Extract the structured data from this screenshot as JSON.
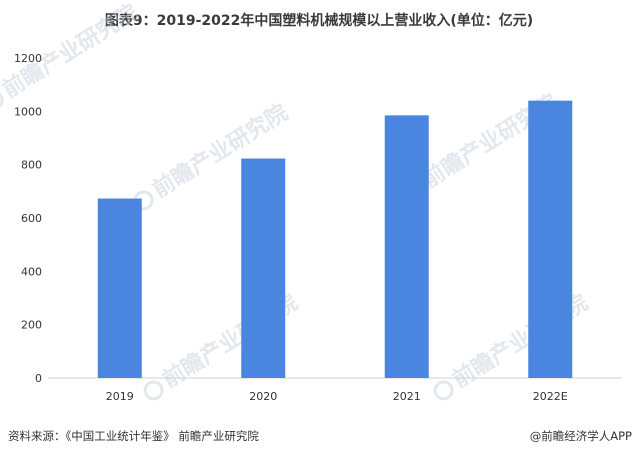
{
  "header": {
    "title": "图表9：2019-2022年中国塑料机械规模以上营业收入(单位：亿元)"
  },
  "footer": {
    "source": "资料来源：《中国工业统计年鉴》 前瞻产业研究院",
    "credit": "@前瞻经济学人APP"
  },
  "watermark": {
    "text": "前瞻产业研究院",
    "icon": "qianzhan-logo-icon"
  },
  "chart_data": {
    "type": "bar",
    "categories": [
      "2019",
      "2020",
      "2021",
      "2022E"
    ],
    "values": [
      673,
      823,
      985,
      1040
    ],
    "title": "图表9：2019-2022年中国塑料机械规模以上营业收入(单位：亿元)",
    "ylim": [
      0,
      1200
    ],
    "yticks": [
      0,
      200,
      400,
      600,
      800,
      1000,
      1200
    ],
    "grid": false,
    "legend": "none",
    "bar_color": "#4a86e0"
  }
}
